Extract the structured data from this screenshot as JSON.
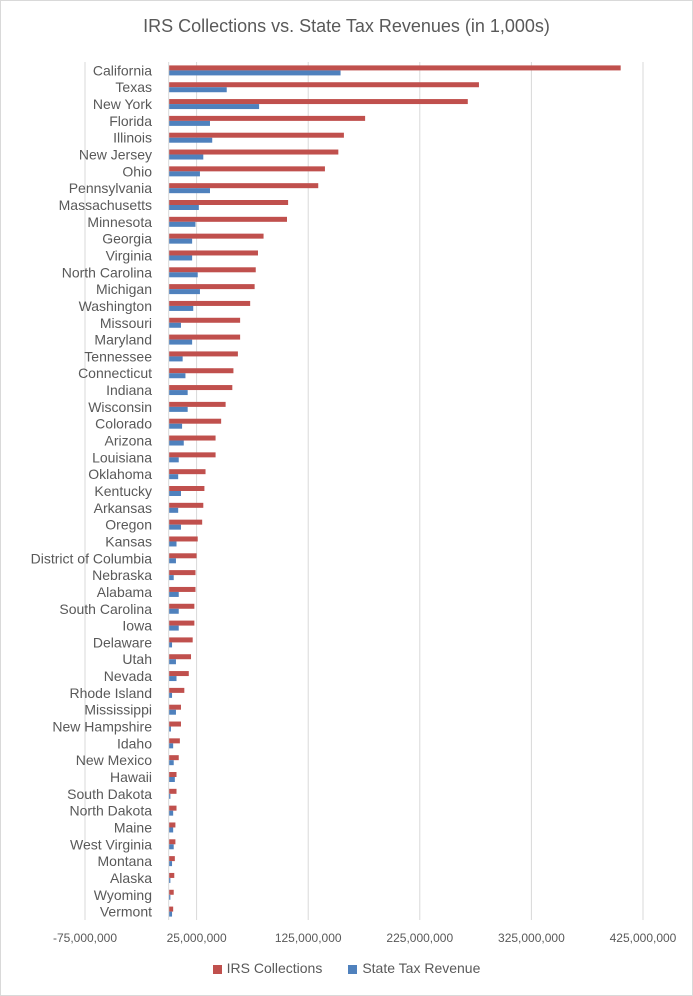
{
  "chart_data": {
    "type": "bar",
    "orientation": "horizontal",
    "title": "IRS Collections vs. State Tax Revenues (in 1,000s)",
    "xlim": [
      -75000000,
      425000000
    ],
    "xticks": [
      -75000000,
      25000000,
      125000000,
      225000000,
      325000000,
      425000000
    ],
    "xtick_labels": [
      "-75,000,000",
      "25,000,000",
      "125,000,000",
      "225,000,000",
      "325,000,000",
      "425,000,000"
    ],
    "grid": true,
    "legend_position": "bottom",
    "categories": [
      "California",
      "Texas",
      "New York",
      "Florida",
      "Illinois",
      "New Jersey",
      "Ohio",
      "Pennsylvania",
      "Massachusetts",
      "Minnesota",
      "Georgia",
      "Virginia",
      "North Carolina",
      "Michigan",
      "Washington",
      "Missouri",
      "Maryland",
      "Tennessee",
      "Connecticut",
      "Indiana",
      "Wisconsin",
      "Colorado",
      "Arizona",
      "Louisiana",
      "Oklahoma",
      "Kentucky",
      "Arkansas",
      "Oregon",
      "Kansas",
      "District of Columbia",
      "Nebraska",
      "Alabama",
      "South Carolina",
      "Iowa",
      "Delaware",
      "Utah",
      "Nevada",
      "Rhode Island",
      "Mississippi",
      "New Hampshire",
      "Idaho",
      "New Mexico",
      "Hawaii",
      "South Dakota",
      "North Dakota",
      "Maine",
      "West Virginia",
      "Montana",
      "Alaska",
      "Wyoming",
      "Vermont"
    ],
    "series": [
      {
        "name": "IRS Collections",
        "color": "#c0504d",
        "values": [
          405000000,
          278000000,
          268000000,
          176000000,
          157000000,
          152000000,
          140000000,
          134000000,
          107000000,
          106000000,
          85000000,
          80000000,
          78000000,
          77000000,
          73000000,
          64000000,
          64000000,
          62000000,
          58000000,
          57000000,
          51000000,
          47000000,
          42000000,
          42000000,
          33000000,
          32000000,
          31000000,
          30000000,
          26000000,
          25000000,
          24000000,
          24000000,
          23000000,
          23000000,
          21500000,
          20000000,
          18000000,
          14000000,
          11000000,
          11000000,
          10000000,
          9000000,
          7000000,
          7000000,
          7000000,
          6000000,
          6000000,
          5500000,
          5000000,
          4500000,
          4000000
        ]
      },
      {
        "name": "State Tax Revenue",
        "color": "#4f81bd",
        "values": [
          154000000,
          52000000,
          81000000,
          37000000,
          39000000,
          31000000,
          28000000,
          37000000,
          27000000,
          24000000,
          21000000,
          21000000,
          26000000,
          28000000,
          22000000,
          11000000,
          21000000,
          12500000,
          15000000,
          17000000,
          17000000,
          12000000,
          13500000,
          9000000,
          8500000,
          11000000,
          8500000,
          11000000,
          7000000,
          6500000,
          4500000,
          9000000,
          9000000,
          9000000,
          3000000,
          6500000,
          7000000,
          3000000,
          6500000,
          2000000,
          4000000,
          4500000,
          5500000,
          1500000,
          4000000,
          4000000,
          4500000,
          3000000,
          1500000,
          1500000,
          3000000
        ]
      }
    ]
  }
}
